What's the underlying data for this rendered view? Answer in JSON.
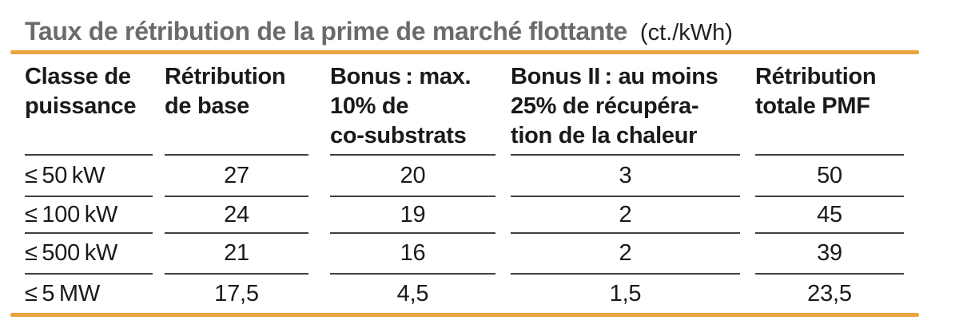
{
  "title": {
    "main": "Taux de rétribution de la prime de marché flottante",
    "unit": "(ct./kWh)"
  },
  "colors": {
    "accent_rule": "#E9A53C",
    "title_gray": "#6b6b6b",
    "text": "#1a1a1a",
    "separator": "#404040"
  },
  "table": {
    "headers": [
      {
        "lines": [
          "Classe de",
          "puissance"
        ]
      },
      {
        "lines": [
          "Rétribution",
          "de base"
        ]
      },
      {
        "lines": [
          "Bonus : max.",
          "10% de",
          "co-substrats"
        ]
      },
      {
        "lines": [
          "Bonus II : au moins",
          "25% de récupéra-",
          "tion de la chaleur"
        ]
      },
      {
        "lines": [
          "Rétribution",
          "totale PMF"
        ]
      }
    ],
    "rows": [
      [
        "≤ 50 kW",
        "27",
        "20",
        "3",
        "50"
      ],
      [
        "≤ 100 kW",
        "24",
        "19",
        "2",
        "45"
      ],
      [
        "≤ 500 kW",
        "21",
        "16",
        "2",
        "39"
      ],
      [
        "≤ 5 MW",
        "17,5",
        "4,5",
        "1,5",
        "23,5"
      ]
    ]
  }
}
